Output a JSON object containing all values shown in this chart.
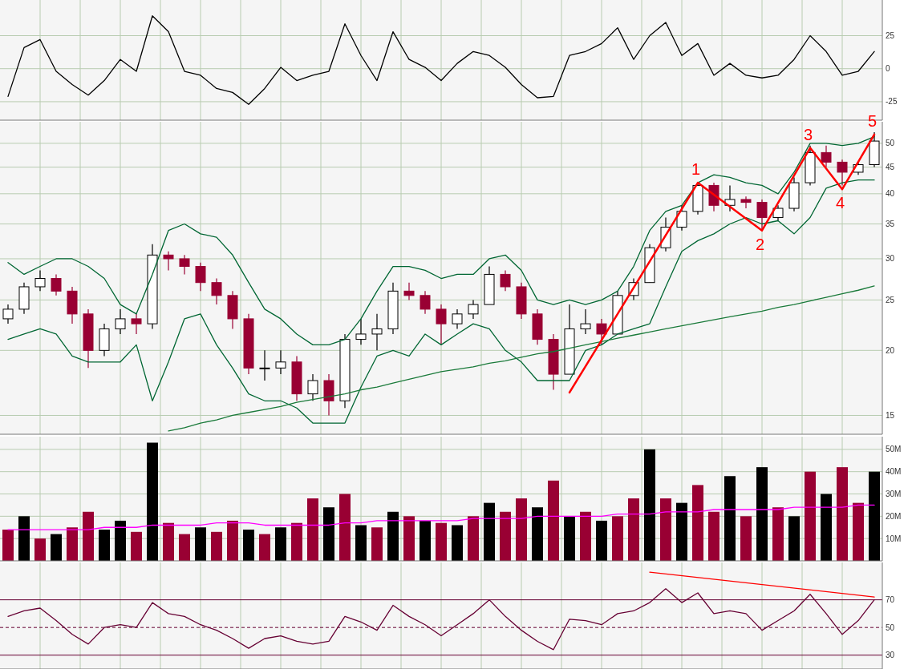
{
  "chart_data": [
    {
      "type": "line",
      "categories": [
        null,
        null,
        null,
        null,
        null,
        null,
        null,
        null,
        null,
        null,
        null,
        null,
        null,
        null,
        null,
        null,
        null,
        null,
        null,
        null,
        null,
        null,
        null,
        null,
        null,
        null,
        null,
        null,
        null,
        null,
        null,
        null,
        null,
        null,
        null,
        null,
        null,
        null,
        null,
        null,
        null,
        null,
        null,
        null,
        null,
        null,
        null,
        null,
        null,
        null,
        null,
        null,
        null,
        null,
        null
      ],
      "series": [
        {
          "color": "#000000",
          "values": [
            -21,
            16,
            22,
            -2,
            -12,
            -20,
            -9,
            7,
            -2,
            40,
            28,
            -2,
            -5,
            -15,
            -18,
            -27,
            -15,
            1,
            -9,
            -5,
            -2,
            34,
            10,
            -9,
            28,
            7,
            1,
            -9,
            4,
            13,
            10,
            1,
            -12,
            -22,
            -21,
            10,
            13,
            19,
            31,
            7,
            25,
            35,
            10,
            19,
            -5,
            4,
            -5,
            -7,
            -5,
            7,
            25,
            13,
            -5,
            -2,
            13
          ]
        }
      ],
      "ylim": [
        -39,
        52
      ],
      "yticks": [
        -25,
        0,
        25
      ],
      "grid": true,
      "tick_labels": "y"
    },
    {
      "type": "candlestick",
      "log": true,
      "categories": [
        null,
        null,
        null,
        null,
        null,
        null,
        null,
        null,
        null,
        null,
        null,
        null,
        null,
        null,
        null,
        null,
        null,
        null,
        null,
        null,
        null,
        null,
        null,
        null,
        null,
        null,
        null,
        null,
        null,
        null,
        null,
        null,
        null,
        null,
        null,
        null,
        null,
        null,
        null,
        null,
        null,
        null,
        null,
        null,
        null,
        null,
        null,
        null,
        null,
        null,
        null,
        null,
        null,
        null,
        null
      ],
      "ohlc": [
        [
          23,
          24.5,
          22.5,
          24
        ],
        [
          24,
          27,
          23.5,
          26.5
        ],
        [
          26.5,
          28.5,
          26,
          27.5
        ],
        [
          27.5,
          28,
          25.5,
          26
        ],
        [
          26,
          26.5,
          22.5,
          23.5
        ],
        [
          23.5,
          24,
          18.5,
          20
        ],
        [
          20,
          22.5,
          19.5,
          22
        ],
        [
          22,
          24,
          21.5,
          23
        ],
        [
          23,
          23.5,
          21.5,
          22.5
        ],
        [
          22.5,
          32,
          22,
          30.5
        ],
        [
          30.5,
          31,
          28.5,
          30
        ],
        [
          30,
          30.5,
          28,
          29
        ],
        [
          29,
          29.5,
          26,
          27
        ],
        [
          27,
          27.5,
          24.5,
          25.5
        ],
        [
          25.5,
          26,
          22,
          23
        ],
        [
          23,
          23.5,
          18,
          18.5
        ],
        [
          18.5,
          20,
          17.5,
          18.5
        ],
        [
          18.5,
          20,
          18,
          19
        ],
        [
          19,
          19.5,
          16,
          16.5
        ],
        [
          16.5,
          18,
          16,
          17.5
        ],
        [
          17.5,
          18,
          15,
          16
        ],
        [
          16,
          21.5,
          15.5,
          21
        ],
        [
          21,
          23,
          20.5,
          21.5
        ],
        [
          21.5,
          23.5,
          20,
          22
        ],
        [
          22,
          27,
          21.5,
          26
        ],
        [
          26,
          27,
          25,
          25.5
        ],
        [
          25.5,
          26,
          23.5,
          24
        ],
        [
          24,
          24.5,
          20.5,
          22.5
        ],
        [
          22.5,
          24,
          22,
          23.5
        ],
        [
          23.5,
          25,
          23,
          24.5
        ],
        [
          24.5,
          29,
          24.5,
          28
        ],
        [
          28,
          28.5,
          26,
          26.5
        ],
        [
          26.5,
          27,
          23,
          23.5
        ],
        [
          23.5,
          24,
          20.5,
          21
        ],
        [
          21,
          21.5,
          16.8,
          18
        ],
        [
          18,
          24.5,
          18,
          22
        ],
        [
          22,
          24,
          21.5,
          22.5
        ],
        [
          22.5,
          23,
          20.5,
          21.5
        ],
        [
          21.5,
          26,
          21.5,
          25.5
        ],
        [
          25.5,
          27.5,
          25,
          27
        ],
        [
          27,
          32,
          27,
          31.5
        ],
        [
          31.5,
          36,
          31,
          34.5
        ],
        [
          34.5,
          38,
          34,
          37
        ],
        [
          37,
          42,
          36.5,
          41.5
        ],
        [
          41.5,
          42,
          37,
          38
        ],
        [
          38,
          41.5,
          37,
          39
        ],
        [
          39,
          39.5,
          37.5,
          38.5
        ],
        [
          38.5,
          39,
          34,
          36
        ],
        [
          36,
          38,
          35.5,
          37.5
        ],
        [
          37.5,
          43,
          37,
          42
        ],
        [
          42,
          49.5,
          41.5,
          48
        ],
        [
          48,
          49.5,
          45,
          46
        ],
        [
          46,
          46.5,
          41.5,
          44
        ],
        [
          44,
          46,
          43.5,
          45.5
        ],
        [
          45.5,
          52.5,
          45,
          50.5
        ]
      ],
      "series": [
        {
          "type": "line",
          "color": "#006633",
          "values": [
            29.5,
            28,
            29,
            30,
            30,
            29,
            27.5,
            24.5,
            23.5,
            28,
            34,
            35,
            33.5,
            33,
            30.5,
            27,
            24,
            23,
            21.5,
            20.5,
            20.5,
            21,
            23,
            26,
            29,
            29,
            28.5,
            27.5,
            28,
            28,
            30,
            30.5,
            28.5,
            25,
            24.5,
            25,
            24.5,
            25,
            26,
            29,
            34,
            37,
            38,
            42,
            43.5,
            43,
            42,
            41.5,
            40,
            44,
            50,
            50,
            49.5,
            50,
            51.5
          ]
        },
        {
          "type": "line",
          "color": "#006633",
          "values": [
            21,
            21.5,
            22,
            21.5,
            19.5,
            19,
            19,
            19,
            20.5,
            16,
            19,
            23,
            23.5,
            20.5,
            18.5,
            16.5,
            16,
            16,
            15.5,
            14.5,
            14.5,
            14.5,
            17,
            19.5,
            20,
            19.5,
            21.5,
            20.5,
            21.5,
            22.5,
            22,
            20,
            19,
            17.5,
            17.5,
            17.5,
            20,
            20.5,
            21.5,
            22,
            22.5,
            26.5,
            31,
            32.5,
            33.5,
            35,
            36,
            35,
            35.5,
            33.5,
            36,
            41,
            42,
            42.5,
            42.5
          ]
        },
        {
          "type": "line",
          "color": "#1a7a3a",
          "values": [
            null,
            null,
            null,
            null,
            null,
            null,
            null,
            null,
            null,
            null,
            14,
            14.2,
            14.5,
            14.7,
            15,
            15.2,
            15.4,
            15.6,
            15.9,
            16.1,
            16.3,
            16.5,
            16.8,
            17,
            17.3,
            17.6,
            17.9,
            18.2,
            18.4,
            18.6,
            18.9,
            19.1,
            19.4,
            19.7,
            19.9,
            20.2,
            20.5,
            20.8,
            21.1,
            21.4,
            21.7,
            22,
            22.3,
            22.6,
            22.9,
            23.2,
            23.5,
            23.8,
            24.2,
            24.5,
            24.9,
            25.3,
            25.7,
            26.1,
            26.6
          ]
        },
        {
          "type": "line",
          "color": "#ff0000",
          "values": [
            null,
            null,
            null,
            null,
            null,
            null,
            null,
            null,
            null,
            null,
            null,
            null,
            null,
            null,
            null,
            null,
            null,
            null,
            null,
            null,
            null,
            null,
            null,
            null,
            null,
            null,
            null,
            null,
            null,
            null,
            null,
            null,
            null,
            null,
            null,
            16.6,
            null,
            null,
            null,
            null,
            null,
            null,
            null,
            42,
            null,
            null,
            null,
            34,
            null,
            null,
            49,
            null,
            40.8,
            null,
            52
          ]
        }
      ],
      "annotations": [
        "1",
        "2",
        "3",
        "4",
        "5"
      ],
      "ylim": [
        13.8,
        55
      ],
      "yticks": [
        15,
        20,
        25,
        30,
        35,
        40,
        45,
        50
      ],
      "grid": true,
      "tick_labels": "y"
    },
    {
      "type": "bar",
      "categories": [
        null,
        null,
        null,
        null,
        null,
        null,
        null,
        null,
        null,
        null,
        null,
        null,
        null,
        null,
        null,
        null,
        null,
        null,
        null,
        null,
        null,
        null,
        null,
        null,
        null,
        null,
        null,
        null,
        null,
        null,
        null,
        null,
        null,
        null,
        null,
        null,
        null,
        null,
        null,
        null,
        null,
        null,
        null,
        null,
        null,
        null,
        null,
        null,
        null,
        null,
        null,
        null,
        null,
        null,
        null
      ],
      "series": [
        {
          "type": "bar",
          "values": [
            14,
            20,
            10,
            12,
            15,
            22,
            14,
            18,
            13,
            53,
            17,
            12,
            15,
            13,
            18,
            14,
            12,
            15,
            17,
            28,
            24,
            30,
            16,
            15,
            22,
            20,
            18,
            17,
            16,
            20,
            26,
            22,
            28,
            24,
            36,
            20,
            22,
            18,
            20,
            28,
            50,
            28,
            26,
            34,
            22,
            38,
            20,
            42,
            24,
            20,
            40,
            30,
            42,
            26,
            40
          ],
          "colors": [
            "#990033",
            "#000000",
            "#990033",
            "#000000",
            "#990033",
            "#990033",
            "#000000",
            "#000000",
            "#990033",
            "#000000",
            "#990033",
            "#990033",
            "#000000",
            "#990033",
            "#990033",
            "#000000",
            "#990033",
            "#000000",
            "#990033",
            "#990033",
            "#000000",
            "#990033",
            "#000000",
            "#990033",
            "#000000",
            "#990033",
            "#000000",
            "#990033",
            "#000000",
            "#990033",
            "#000000",
            "#990033",
            "#990033",
            "#000000",
            "#990033",
            "#000000",
            "#990033",
            "#000000",
            "#990033",
            "#990033",
            "#000000",
            "#990033",
            "#000000",
            "#990033",
            "#990033",
            "#000000",
            "#990033",
            "#000000",
            "#990033",
            "#000000",
            "#990033",
            "#000000",
            "#990033",
            "#990033",
            "#000000"
          ]
        },
        {
          "type": "line",
          "color": "#ff00ff",
          "values": [
            14,
            14,
            14,
            14,
            14,
            14,
            15,
            15,
            15,
            16,
            16,
            16,
            16,
            17,
            17,
            17,
            16,
            16,
            16,
            16,
            16,
            17,
            17,
            18,
            18,
            18,
            18,
            18,
            18,
            19,
            19,
            19,
            19,
            20,
            20,
            20,
            20,
            20,
            21,
            21,
            21,
            22,
            22,
            22,
            23,
            23,
            23,
            23,
            23,
            24,
            24,
            24,
            24,
            25,
            25
          ]
        }
      ],
      "ylim": [
        0,
        55.7
      ],
      "yticks": [
        {
          "value": 10,
          "label": "10M"
        },
        {
          "value": 20,
          "label": "20M"
        },
        {
          "value": 30,
          "label": "30M"
        },
        {
          "value": 40,
          "label": "40M"
        },
        {
          "value": 50,
          "label": "50M"
        }
      ],
      "grid": true,
      "tick_labels": "y"
    },
    {
      "type": "line",
      "categories": [
        null,
        null,
        null,
        null,
        null,
        null,
        null,
        null,
        null,
        null,
        null,
        null,
        null,
        null,
        null,
        null,
        null,
        null,
        null,
        null,
        null,
        null,
        null,
        null,
        null,
        null,
        null,
        null,
        null,
        null,
        null,
        null,
        null,
        null,
        null,
        null,
        null,
        null,
        null,
        null,
        null,
        null,
        null,
        null,
        null,
        null,
        null,
        null,
        null,
        null,
        null,
        null,
        null,
        null,
        null
      ],
      "series": [
        {
          "color": "#660033",
          "values": [
            58,
            62,
            64,
            55,
            45,
            38,
            50,
            52,
            50,
            68,
            60,
            58,
            52,
            48,
            42,
            35,
            42,
            44,
            40,
            38,
            40,
            58,
            54,
            48,
            66,
            58,
            52,
            44,
            52,
            60,
            70,
            58,
            48,
            40,
            34,
            56,
            55,
            52,
            60,
            62,
            68,
            78,
            68,
            75,
            60,
            62,
            60,
            48,
            55,
            62,
            74,
            60,
            45,
            55,
            70
          ]
        },
        {
          "color": "#ff0000",
          "values": [
            null,
            null,
            null,
            null,
            null,
            null,
            null,
            null,
            null,
            null,
            null,
            null,
            null,
            null,
            null,
            null,
            null,
            null,
            null,
            null,
            null,
            null,
            null,
            null,
            null,
            null,
            null,
            null,
            null,
            null,
            null,
            null,
            null,
            null,
            null,
            null,
            null,
            null,
            null,
            null,
            90,
            null,
            null,
            null,
            null,
            null,
            null,
            null,
            null,
            null,
            null,
            null,
            null,
            null,
            72
          ]
        }
      ],
      "ref_lines": [
        {
          "axis": "y",
          "value": 70,
          "color": "#660033",
          "line_style": "solid"
        },
        {
          "axis": "y",
          "value": 50,
          "color": "#660033",
          "line_style": "dashed"
        },
        {
          "axis": "y",
          "value": 30,
          "color": "#660033",
          "line_style": "solid"
        }
      ],
      "ylim": [
        20,
        97
      ],
      "yticks": [
        30,
        50,
        70
      ],
      "grid": "x",
      "tick_labels": "y"
    }
  ]
}
